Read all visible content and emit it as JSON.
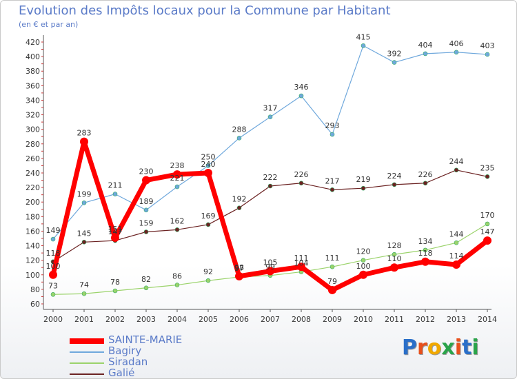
{
  "header": {
    "title": "Evolution des Impôts locaux pour la Commune par Habitant",
    "subtitle": "(en € et par an)"
  },
  "brand": {
    "logo_text": "Proxiti",
    "letter_colors": [
      "#2a6fc9",
      "#e8501c",
      "#f0a800",
      "#2aa44a",
      "#e8501c",
      "#2a6fc9",
      "#2aa44a"
    ]
  },
  "chart_data": {
    "type": "line",
    "title": "Evolution des Impôts locaux pour la Commune par Habitant",
    "subtitle": "(en € et par an)",
    "x": [
      2000,
      2001,
      2002,
      2003,
      2004,
      2005,
      2006,
      2007,
      2008,
      2009,
      2010,
      2011,
      2012,
      2013,
      2014
    ],
    "ylim": [
      60,
      420
    ],
    "yticks": [
      60,
      80,
      100,
      120,
      140,
      160,
      180,
      200,
      220,
      240,
      260,
      280,
      300,
      320,
      340,
      360,
      380,
      400,
      420
    ],
    "grid": false,
    "legend_position": "bottom-left",
    "series": [
      {
        "name": "SAINTE-MARIE",
        "color": "#ff0000",
        "values": [
          100,
          283,
          151,
          230,
          238,
          240,
          98,
          105,
          111,
          79,
          100,
          110,
          118,
          114,
          147
        ]
      },
      {
        "name": "Bagiry",
        "color": "#6fa8dc",
        "values": [
          149,
          199,
          211,
          189,
          221,
          250,
          288,
          317,
          346,
          293,
          415,
          392,
          404,
          406,
          403
        ]
      },
      {
        "name": "Siradan",
        "color": "#9bd36b",
        "values": [
          73,
          74,
          78,
          82,
          86,
          92,
          97,
          99,
          104,
          111,
          120,
          128,
          134,
          144,
          170
        ]
      },
      {
        "name": "Galié",
        "color": "#6b2222",
        "values": [
          118,
          145,
          147,
          159,
          162,
          169,
          192,
          222,
          226,
          217,
          219,
          224,
          226,
          244,
          235
        ]
      }
    ]
  }
}
